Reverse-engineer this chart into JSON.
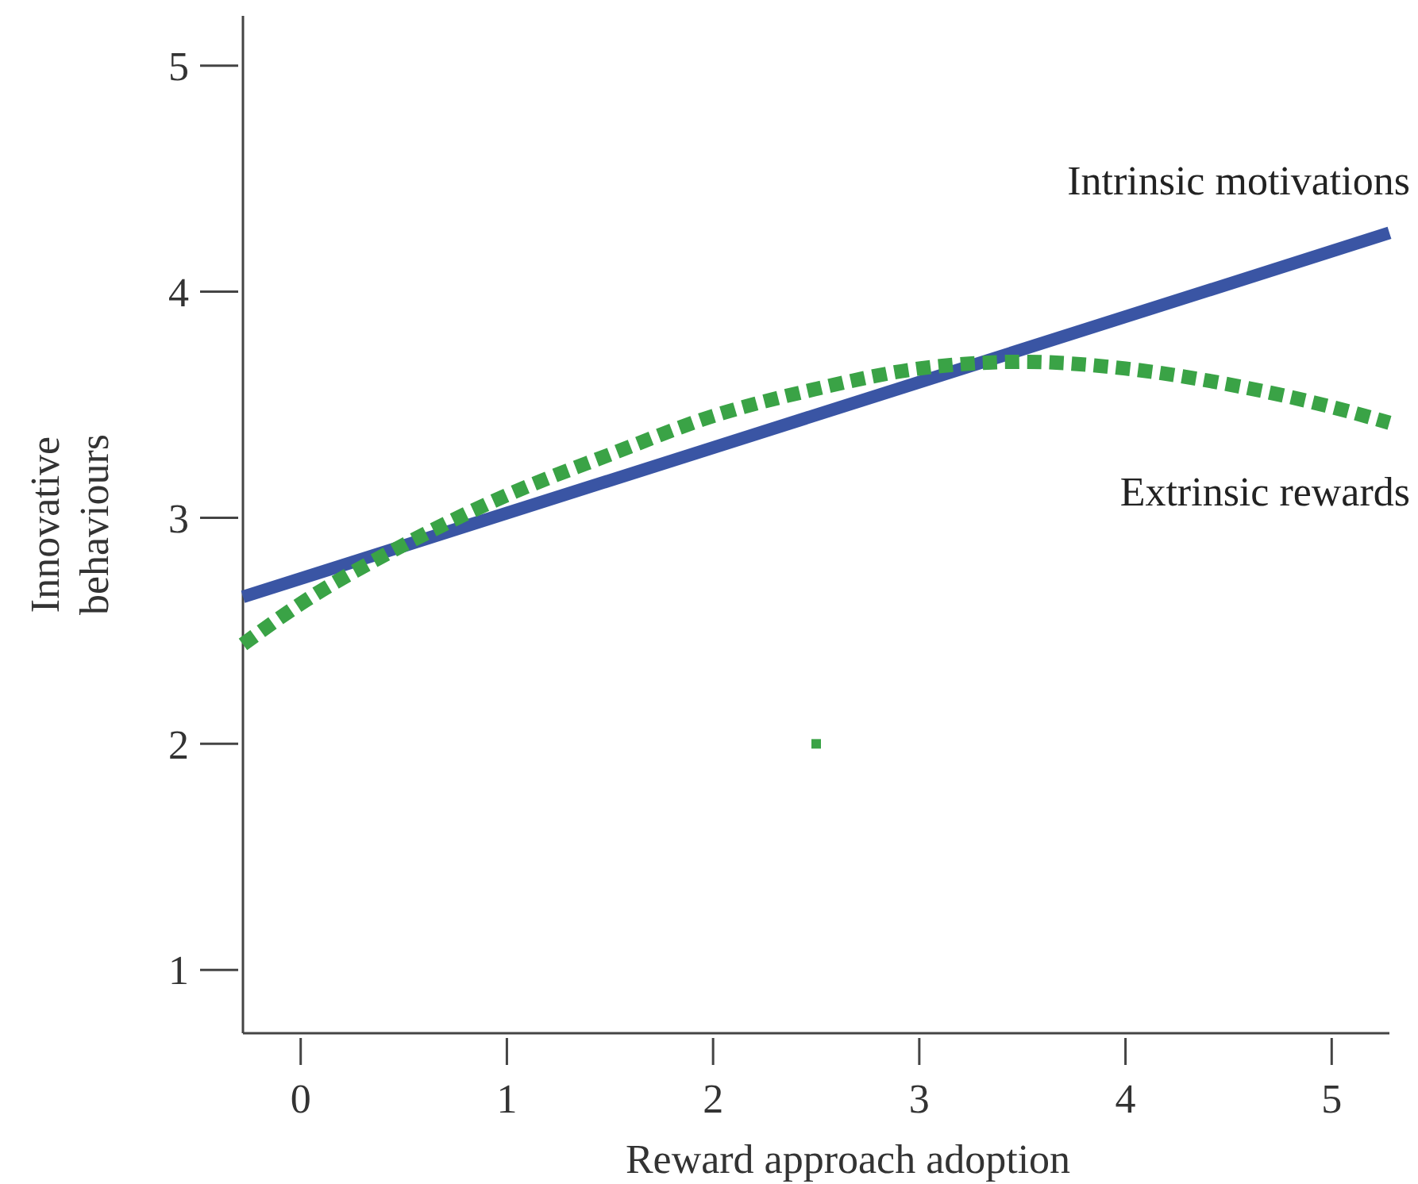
{
  "chart_data": {
    "type": "line",
    "xlabel": "Reward approach adoption",
    "ylabel": "Innovative behaviours",
    "xlim": [
      -0.28,
      5.28
    ],
    "ylim": [
      0.72,
      5.22
    ],
    "xticks": [
      0,
      1,
      2,
      3,
      4,
      5
    ],
    "yticks": [
      1,
      2,
      3,
      4,
      5
    ],
    "grid": false,
    "series": [
      {
        "name": "Intrinsic motivations",
        "color": "#3a55a4",
        "line_style": "solid",
        "x": [
          -0.28,
          5.28
        ],
        "values": [
          2.65,
          4.26
        ]
      },
      {
        "name": "Extrinsic rewards",
        "color": "#3aa346",
        "line_style": "dotted",
        "x": [
          -0.28,
          0,
          0.5,
          1,
          1.5,
          2,
          2.5,
          3,
          3.5,
          4,
          4.5,
          5,
          5.28
        ],
        "values": [
          2.44,
          2.62,
          2.88,
          3.1,
          3.28,
          3.45,
          3.57,
          3.66,
          3.69,
          3.66,
          3.59,
          3.49,
          3.42
        ]
      },
      {
        "type": "scatter",
        "color": "#3aa346",
        "marker": "square",
        "x": [
          2.5
        ],
        "values": [
          2
        ]
      }
    ]
  }
}
